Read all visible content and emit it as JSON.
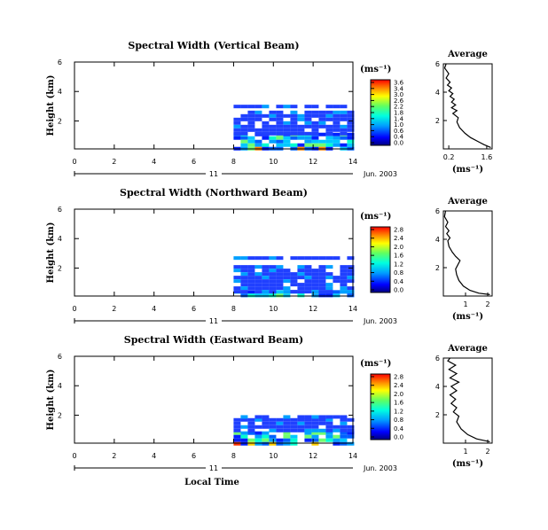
{
  "chart_data": [
    {
      "type": "heatmap",
      "title": "Spectral Width (Vertical Beam)",
      "ylabel": "Height (km)",
      "xticks": [
        0,
        2,
        4,
        6,
        8,
        10,
        12,
        14
      ],
      "yticks": [
        2,
        4,
        6
      ],
      "xlim": [
        0,
        14
      ],
      "ylim": [
        0.1,
        6
      ],
      "date_axis": {
        "day_label": "11",
        "date_label": "Jun. 2003"
      },
      "data_start_hour": 8,
      "data_layers": [
        {
          "y_from": 0.1,
          "y_to": 1.2,
          "level": "high"
        },
        {
          "y_from": 1.2,
          "y_to": 2.7,
          "level": "low"
        },
        {
          "y_from": 3.0,
          "y_to": 3.1,
          "level": "low"
        }
      ],
      "colorbar": {
        "unit": "(ms⁻¹)",
        "ticks": [
          "3.6",
          "3.4",
          "3.0",
          "2.6",
          "2.2",
          "1.8",
          "1.4",
          "1.0",
          "0.6",
          "0.4",
          "0.0"
        ]
      },
      "average": {
        "title": "Average",
        "xlabel": "(ms⁻¹)",
        "xticks": [
          "0.2",
          "1.6"
        ],
        "xtick_values": [
          0.2,
          1.6
        ],
        "xlim": [
          0,
          1.8
        ],
        "yticks": [
          2,
          4,
          6
        ],
        "ylim": [
          0,
          6
        ],
        "profile": [
          [
            1.75,
            0.1
          ],
          [
            1.5,
            0.3
          ],
          [
            1.3,
            0.5
          ],
          [
            1.0,
            0.8
          ],
          [
            0.8,
            1.1
          ],
          [
            0.6,
            1.5
          ],
          [
            0.5,
            1.9
          ],
          [
            0.55,
            2.2
          ],
          [
            0.35,
            2.5
          ],
          [
            0.5,
            2.7
          ],
          [
            0.3,
            2.9
          ],
          [
            0.45,
            3.1
          ],
          [
            0.3,
            3.3
          ],
          [
            0.4,
            3.5
          ],
          [
            0.25,
            3.7
          ],
          [
            0.35,
            3.9
          ],
          [
            0.2,
            4.1
          ],
          [
            0.3,
            4.3
          ],
          [
            0.15,
            4.5
          ],
          [
            0.25,
            4.7
          ],
          [
            0.1,
            5.0
          ],
          [
            0.2,
            5.3
          ],
          [
            0.05,
            5.7
          ],
          [
            0.1,
            6.0
          ]
        ]
      }
    },
    {
      "type": "heatmap",
      "title": "Spectral Width (Northward Beam)",
      "ylabel": "Height (km)",
      "xticks": [
        0,
        2,
        4,
        6,
        8,
        10,
        12,
        14
      ],
      "yticks": [
        2,
        4,
        6
      ],
      "xlim": [
        0,
        14
      ],
      "ylim": [
        0.1,
        6
      ],
      "date_axis": {
        "day_label": "11",
        "date_label": "Jun. 2003"
      },
      "data_start_hour": 8,
      "data_layers": [
        {
          "y_from": 0.1,
          "y_to": 0.5,
          "level": "high"
        },
        {
          "y_from": 0.5,
          "y_to": 2.2,
          "level": "low"
        },
        {
          "y_from": 2.6,
          "y_to": 2.8,
          "level": "low"
        }
      ],
      "colorbar": {
        "unit": "(ms⁻¹)",
        "ticks": [
          "2.8",
          "2.4",
          "2.0",
          "1.6",
          "1.2",
          "0.8",
          "0.4",
          "0.0"
        ]
      },
      "average": {
        "title": "Average",
        "xlabel": "(ms⁻¹)",
        "xticks": [
          "1",
          "2"
        ],
        "xtick_values": [
          1,
          2
        ],
        "xlim": [
          0,
          2.2
        ],
        "yticks": [
          2,
          4,
          6
        ],
        "ylim": [
          0,
          6
        ],
        "profile": [
          [
            2.1,
            0.1
          ],
          [
            1.6,
            0.2
          ],
          [
            1.2,
            0.4
          ],
          [
            0.9,
            0.7
          ],
          [
            0.7,
            1.1
          ],
          [
            0.6,
            1.5
          ],
          [
            0.55,
            1.9
          ],
          [
            0.65,
            2.2
          ],
          [
            0.75,
            2.5
          ],
          [
            0.55,
            2.8
          ],
          [
            0.4,
            3.1
          ],
          [
            0.25,
            3.5
          ],
          [
            0.2,
            3.9
          ],
          [
            0.3,
            4.1
          ],
          [
            0.15,
            4.4
          ],
          [
            0.25,
            4.6
          ],
          [
            0.1,
            4.9
          ],
          [
            0.2,
            5.2
          ],
          [
            0.05,
            5.6
          ],
          [
            0.1,
            6.0
          ]
        ]
      }
    },
    {
      "type": "heatmap",
      "title": "Spectral Width (Eastward Beam)",
      "ylabel": "Height (km)",
      "xlabel": "Local Time",
      "xticks": [
        0,
        2,
        4,
        6,
        8,
        10,
        12,
        14
      ],
      "yticks": [
        2,
        4,
        6
      ],
      "xlim": [
        0,
        14
      ],
      "ylim": [
        0.1,
        6
      ],
      "date_axis": {
        "day_label": "11",
        "date_label": "Jun. 2003"
      },
      "data_start_hour": 8,
      "data_layers": [
        {
          "y_from": 0.1,
          "y_to": 0.9,
          "level": "high"
        },
        {
          "y_from": 0.9,
          "y_to": 1.8,
          "level": "low"
        },
        {
          "y_from": 1.8,
          "y_to": 2.0,
          "level": "low"
        }
      ],
      "colorbar": {
        "unit": "(ms⁻¹)",
        "ticks": [
          "2.8",
          "2.4",
          "2.0",
          "1.6",
          "1.2",
          "0.8",
          "0.4",
          "0.0"
        ]
      },
      "average": {
        "title": "Average",
        "xlabel": "(ms⁻¹)",
        "xticks": [
          "1",
          "2"
        ],
        "xtick_values": [
          1,
          2
        ],
        "xlim": [
          0,
          2.2
        ],
        "yticks": [
          2,
          4,
          6
        ],
        "ylim": [
          0,
          6
        ],
        "profile": [
          [
            2.1,
            0.1
          ],
          [
            1.5,
            0.3
          ],
          [
            1.1,
            0.6
          ],
          [
            0.8,
            1.0
          ],
          [
            0.6,
            1.5
          ],
          [
            0.7,
            1.9
          ],
          [
            0.45,
            2.2
          ],
          [
            0.6,
            2.5
          ],
          [
            0.35,
            2.8
          ],
          [
            0.55,
            3.1
          ],
          [
            0.3,
            3.4
          ],
          [
            0.6,
            3.7
          ],
          [
            0.35,
            4.0
          ],
          [
            0.7,
            4.3
          ],
          [
            0.3,
            4.6
          ],
          [
            0.6,
            4.9
          ],
          [
            0.25,
            5.2
          ],
          [
            0.55,
            5.5
          ],
          [
            0.2,
            5.8
          ],
          [
            0.3,
            6.0
          ]
        ]
      }
    }
  ]
}
